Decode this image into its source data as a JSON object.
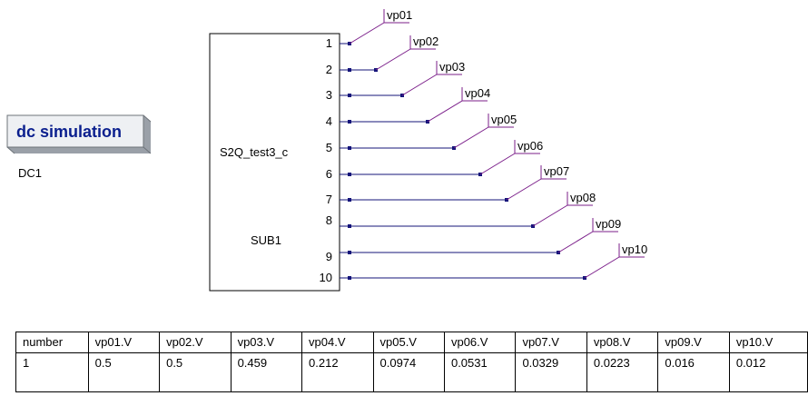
{
  "simulation": {
    "title": "dc simulation",
    "instance": "DC1"
  },
  "subcircuit": {
    "model": "S2Q_test3_c",
    "instance": "SUB1",
    "pins": [
      "1",
      "2",
      "3",
      "4",
      "5",
      "6",
      "7",
      "8",
      "9",
      "10"
    ]
  },
  "probes": [
    "vp01",
    "vp02",
    "vp03",
    "vp04",
    "vp05",
    "vp06",
    "vp07",
    "vp08",
    "vp09",
    "vp10"
  ],
  "colors": {
    "title": "#0b1f8e",
    "wire": "#14147a",
    "probe": "#7b1f8a"
  },
  "results": {
    "headers": [
      "number",
      "vp01.V",
      "vp02.V",
      "vp03.V",
      "vp04.V",
      "vp05.V",
      "vp06.V",
      "vp07.V",
      "vp08.V",
      "vp09.V",
      "vp10.V"
    ],
    "rows": [
      [
        "1",
        "0.5",
        "0.5",
        "0.459",
        "0.212",
        "0.0974",
        "0.0531",
        "0.0329",
        "0.0223",
        "0.016",
        "0.012"
      ]
    ]
  }
}
